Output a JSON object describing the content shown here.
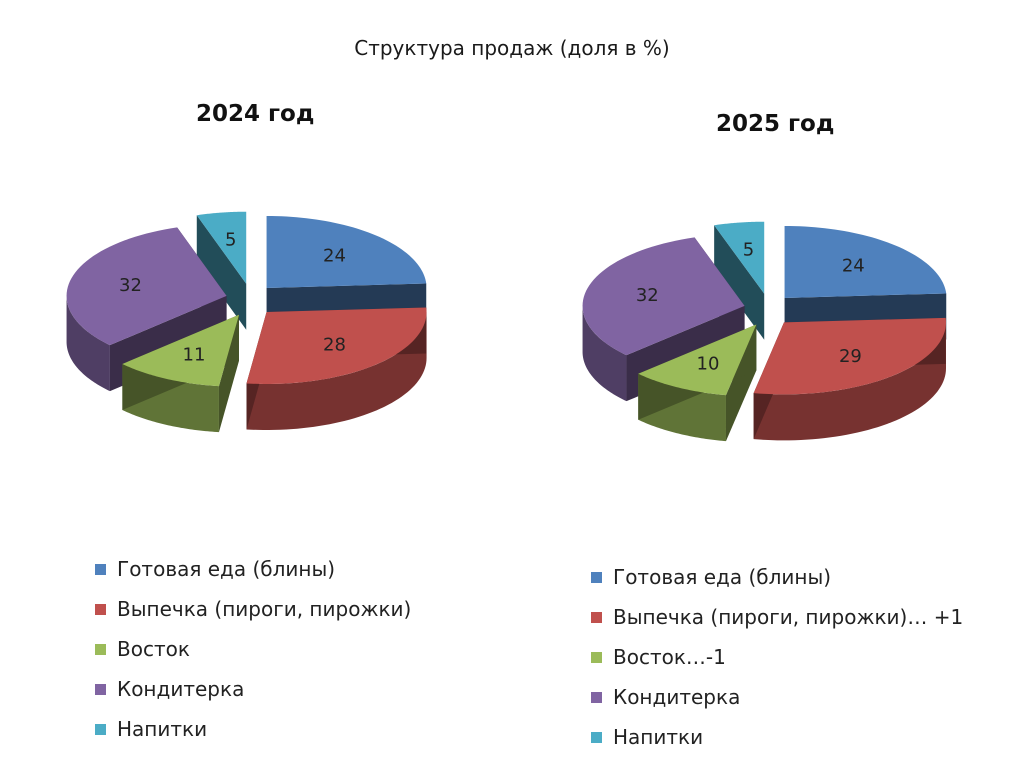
{
  "title": "Структура продаж (доля в %)",
  "palette": {
    "Готовая еда (блины)": "#4f81bd",
    "Выпечка (пироги, пирожки)": "#c0504d",
    "Восток": "#9bbb59",
    "Кондитерка": "#8064a2",
    "Напитки": "#4bacc6"
  },
  "chart_data": [
    {
      "type": "pie",
      "title": "2024 год",
      "slices": [
        {
          "label": "Готовая еда (блины)",
          "value": 24
        },
        {
          "label": "Выпечка (пироги, пирожки)",
          "value": 28
        },
        {
          "label": "Восток",
          "value": 11
        },
        {
          "label": "Кондитерка",
          "value": 32
        },
        {
          "label": "Напитки",
          "value": 5
        }
      ],
      "legend": [
        "Готовая еда (блины)",
        "Выпечка (пироги, пирожки)",
        "Восток",
        "Кондитерка",
        "Напитки"
      ],
      "legend_position": "bottom",
      "style": "3d-exploded"
    },
    {
      "type": "pie",
      "title": "2025 год",
      "slices": [
        {
          "label": "Готовая еда (блины)",
          "value": 24
        },
        {
          "label": "Выпечка (пироги, пирожки)",
          "value": 29
        },
        {
          "label": "Восток",
          "value": 10
        },
        {
          "label": "Кондитерка",
          "value": 32
        },
        {
          "label": "Напитки",
          "value": 5
        }
      ],
      "legend": [
        "Готовая еда (блины)",
        "Выпечка (пироги, пирожки)… +1",
        "Восток…-1",
        "Кондитерка",
        "Напитки"
      ],
      "legend_position": "bottom",
      "style": "3d-exploded"
    }
  ]
}
